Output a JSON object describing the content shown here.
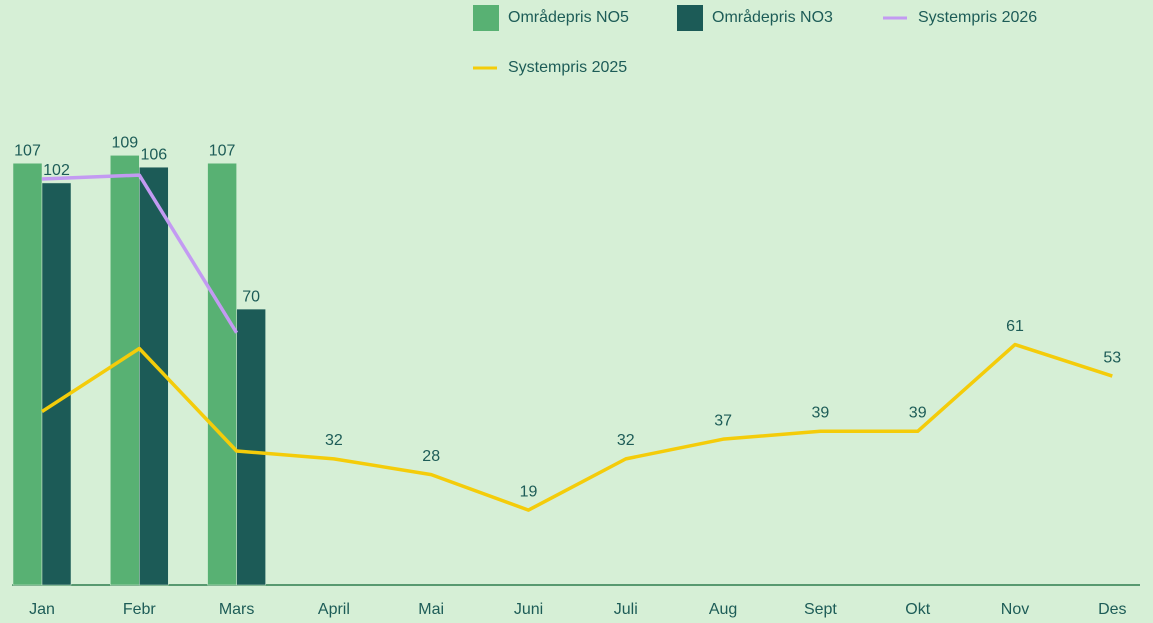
{
  "chart_data": {
    "type": "combo",
    "categories": [
      "Jan",
      "Febr",
      "Mars",
      "April",
      "Mai",
      "Juni",
      "Juli",
      "Aug",
      "Sept",
      "Okt",
      "Nov",
      "Des"
    ],
    "series": [
      {
        "name": "Områdepris NO5",
        "type": "bar",
        "color": "#58b173",
        "values": [
          107,
          109,
          107,
          null,
          null,
          null,
          null,
          null,
          null,
          null,
          null,
          null
        ]
      },
      {
        "name": "Områdepris NO3",
        "type": "bar",
        "color": "#1c5b57",
        "values": [
          102,
          106,
          70,
          null,
          null,
          null,
          null,
          null,
          null,
          null,
          null,
          null
        ]
      },
      {
        "name": "Systempris 2026",
        "type": "line",
        "color": "#c39af2",
        "values": [
          103,
          104,
          64,
          null,
          null,
          null,
          null,
          null,
          null,
          null,
          null,
          null
        ]
      },
      {
        "name": "Systempris 2025",
        "type": "line",
        "color": "#f4cc0a",
        "values": [
          44,
          60,
          34,
          32,
          28,
          19,
          32,
          37,
          39,
          39,
          61,
          53
        ]
      }
    ],
    "ylim": [
      0,
      120
    ]
  }
}
